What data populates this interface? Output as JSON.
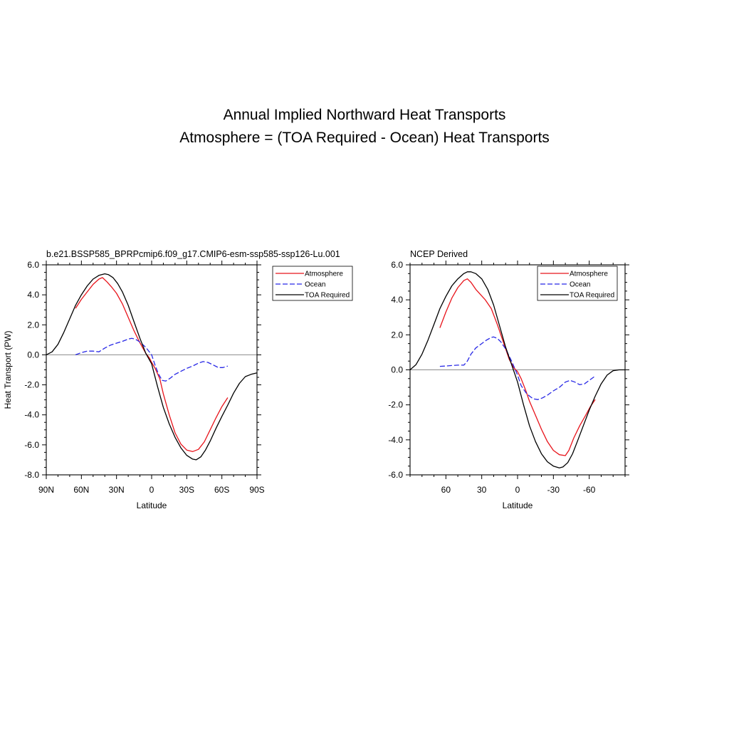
{
  "figure": {
    "title_line1": "Annual Implied Northward Heat Transports",
    "title_line2": "Atmosphere = (TOA Required - Ocean) Heat Transports"
  },
  "chart_data": [
    {
      "type": "line",
      "title": "b.e21.BSSP585_BPRPcmip6.f09_g17.CMIP6-esm-ssp585-ssp126-Lu.001",
      "xlabel": "Latitude",
      "ylabel": "Heat Transport (PW)",
      "xlim": [
        90,
        -90
      ],
      "ylim": [
        -8,
        6
      ],
      "x_ticks": [
        90,
        60,
        30,
        0,
        -30,
        -60,
        -90
      ],
      "x_tick_labels": [
        "90N",
        "60N",
        "30N",
        "0",
        "30S",
        "60S",
        "90S"
      ],
      "y_ticks": [
        6,
        4,
        2,
        0,
        -2,
        -4,
        -6,
        -8
      ],
      "y_tick_labels": [
        "6.0",
        "4.0",
        "2.0",
        "0.0",
        "-2.0",
        "-4.0",
        "-6.0",
        "-8.0"
      ],
      "zero_line": true,
      "legend_position": "outside-top-right",
      "series": [
        {
          "name": "Atmosphere",
          "color": "#e8141b",
          "dash": "solid",
          "x": [
            65,
            60,
            55,
            50,
            45,
            42,
            38,
            34,
            30,
            25,
            20,
            15,
            10,
            5,
            2,
            0,
            -3,
            -7,
            -10,
            -15,
            -20,
            -25,
            -30,
            -35,
            -40,
            -45,
            -50,
            -55,
            -60,
            -65
          ],
          "y": [
            3.1,
            3.7,
            4.2,
            4.7,
            5.05,
            5.15,
            4.85,
            4.5,
            4.1,
            3.4,
            2.5,
            1.6,
            0.8,
            0.1,
            -0.2,
            -0.5,
            -0.9,
            -1.6,
            -2.6,
            -4.0,
            -5.2,
            -5.95,
            -6.35,
            -6.45,
            -6.3,
            -5.8,
            -5.0,
            -4.2,
            -3.45,
            -2.85
          ]
        },
        {
          "name": "Ocean",
          "color": "#2828e6",
          "dash": "dashed",
          "x": [
            65,
            60,
            55,
            50,
            45,
            40,
            35,
            30,
            25,
            20,
            17,
            14,
            10,
            5,
            0,
            -3,
            -6,
            -9,
            -12,
            -16,
            -20,
            -25,
            -30,
            -35,
            -40,
            -44,
            -48,
            -52,
            -57,
            -61,
            -65
          ],
          "y": [
            0.0,
            0.15,
            0.25,
            0.25,
            0.2,
            0.45,
            0.65,
            0.78,
            0.9,
            1.05,
            1.1,
            1.05,
            0.85,
            0.5,
            0.0,
            -0.7,
            -1.3,
            -1.7,
            -1.75,
            -1.55,
            -1.3,
            -1.1,
            -0.9,
            -0.75,
            -0.55,
            -0.45,
            -0.5,
            -0.65,
            -0.85,
            -0.85,
            -0.75
          ]
        },
        {
          "name": "TOA Required",
          "color": "#000000",
          "dash": "solid",
          "x": [
            90,
            85,
            80,
            75,
            70,
            65,
            60,
            55,
            50,
            45,
            40,
            37,
            33,
            29,
            25,
            20,
            15,
            10,
            5,
            0,
            -5,
            -10,
            -15,
            -20,
            -25,
            -30,
            -35,
            -38,
            -42,
            -46,
            -50,
            -55,
            -60,
            -65,
            -70,
            -75,
            -80,
            -85,
            -90
          ],
          "y": [
            0.0,
            0.2,
            0.7,
            1.5,
            2.4,
            3.3,
            4.0,
            4.6,
            5.05,
            5.3,
            5.4,
            5.35,
            5.15,
            4.75,
            4.2,
            3.3,
            2.2,
            1.1,
            0.1,
            -0.6,
            -2.1,
            -3.5,
            -4.6,
            -5.5,
            -6.2,
            -6.7,
            -6.95,
            -7.0,
            -6.8,
            -6.35,
            -5.75,
            -4.9,
            -4.1,
            -3.35,
            -2.55,
            -1.9,
            -1.45,
            -1.3,
            -1.2
          ]
        }
      ]
    },
    {
      "type": "line",
      "title": "NCEP Derived",
      "xlabel": "Latitude",
      "ylabel": "",
      "xlim": [
        90,
        -90
      ],
      "ylim": [
        -6,
        6
      ],
      "x_ticks": [
        60,
        30,
        0,
        -30,
        -60
      ],
      "x_tick_labels": [
        "60",
        "30",
        "0",
        "-30",
        "-60"
      ],
      "y_ticks": [
        6,
        4,
        2,
        0,
        -2,
        -4,
        -6
      ],
      "y_tick_labels": [
        "6.0",
        "4.0",
        "2.0",
        "0.0",
        "-2.0",
        "-4.0",
        "-6.0"
      ],
      "zero_line": true,
      "legend_position": "top-right",
      "series": [
        {
          "name": "Atmosphere",
          "color": "#e8141b",
          "dash": "solid",
          "x": [
            65,
            60,
            55,
            50,
            45,
            42,
            39,
            35,
            31,
            27,
            22,
            17,
            12,
            7,
            3,
            0,
            -3,
            -7,
            -10,
            -15,
            -20,
            -25,
            -30,
            -35,
            -40,
            -43,
            -47,
            -52,
            -57,
            -61,
            -65
          ],
          "y": [
            2.4,
            3.3,
            4.1,
            4.7,
            5.1,
            5.2,
            5.0,
            4.6,
            4.3,
            4.0,
            3.5,
            2.6,
            1.6,
            0.6,
            0.1,
            -0.1,
            -0.5,
            -1.2,
            -1.8,
            -2.6,
            -3.4,
            -4.1,
            -4.6,
            -4.85,
            -4.9,
            -4.6,
            -3.9,
            -3.2,
            -2.6,
            -2.1,
            -1.7
          ]
        },
        {
          "name": "Ocean",
          "color": "#2828e6",
          "dash": "dashed",
          "x": [
            65,
            60,
            55,
            50,
            45,
            42,
            39,
            35,
            30,
            26,
            22,
            20,
            17,
            14,
            10,
            5,
            0,
            -3,
            -7,
            -10,
            -13,
            -17,
            -21,
            -25,
            -30,
            -35,
            -40,
            -44,
            -48,
            -52,
            -56,
            -60,
            -65
          ],
          "y": [
            0.2,
            0.22,
            0.25,
            0.27,
            0.27,
            0.5,
            0.9,
            1.25,
            1.5,
            1.7,
            1.85,
            1.88,
            1.8,
            1.6,
            1.2,
            0.5,
            -0.3,
            -0.9,
            -1.3,
            -1.5,
            -1.65,
            -1.7,
            -1.6,
            -1.45,
            -1.2,
            -1.0,
            -0.7,
            -0.6,
            -0.7,
            -0.85,
            -0.8,
            -0.6,
            -0.35
          ]
        },
        {
          "name": "TOA Required",
          "color": "#000000",
          "dash": "solid",
          "x": [
            90,
            85,
            80,
            75,
            70,
            65,
            60,
            55,
            50,
            45,
            42,
            39,
            35,
            30,
            25,
            20,
            15,
            10,
            5,
            0,
            -5,
            -10,
            -15,
            -20,
            -25,
            -30,
            -35,
            -38,
            -42,
            -46,
            -50,
            -55,
            -60,
            -65,
            -70,
            -75,
            -80,
            -85,
            -90
          ],
          "y": [
            0.0,
            0.3,
            0.9,
            1.7,
            2.6,
            3.5,
            4.2,
            4.8,
            5.2,
            5.5,
            5.6,
            5.6,
            5.5,
            5.2,
            4.6,
            3.7,
            2.5,
            1.3,
            0.3,
            -0.7,
            -2.0,
            -3.2,
            -4.1,
            -4.8,
            -5.25,
            -5.5,
            -5.6,
            -5.55,
            -5.3,
            -4.8,
            -4.1,
            -3.2,
            -2.3,
            -1.5,
            -0.8,
            -0.3,
            -0.05,
            0.0,
            0.0
          ]
        }
      ]
    }
  ]
}
